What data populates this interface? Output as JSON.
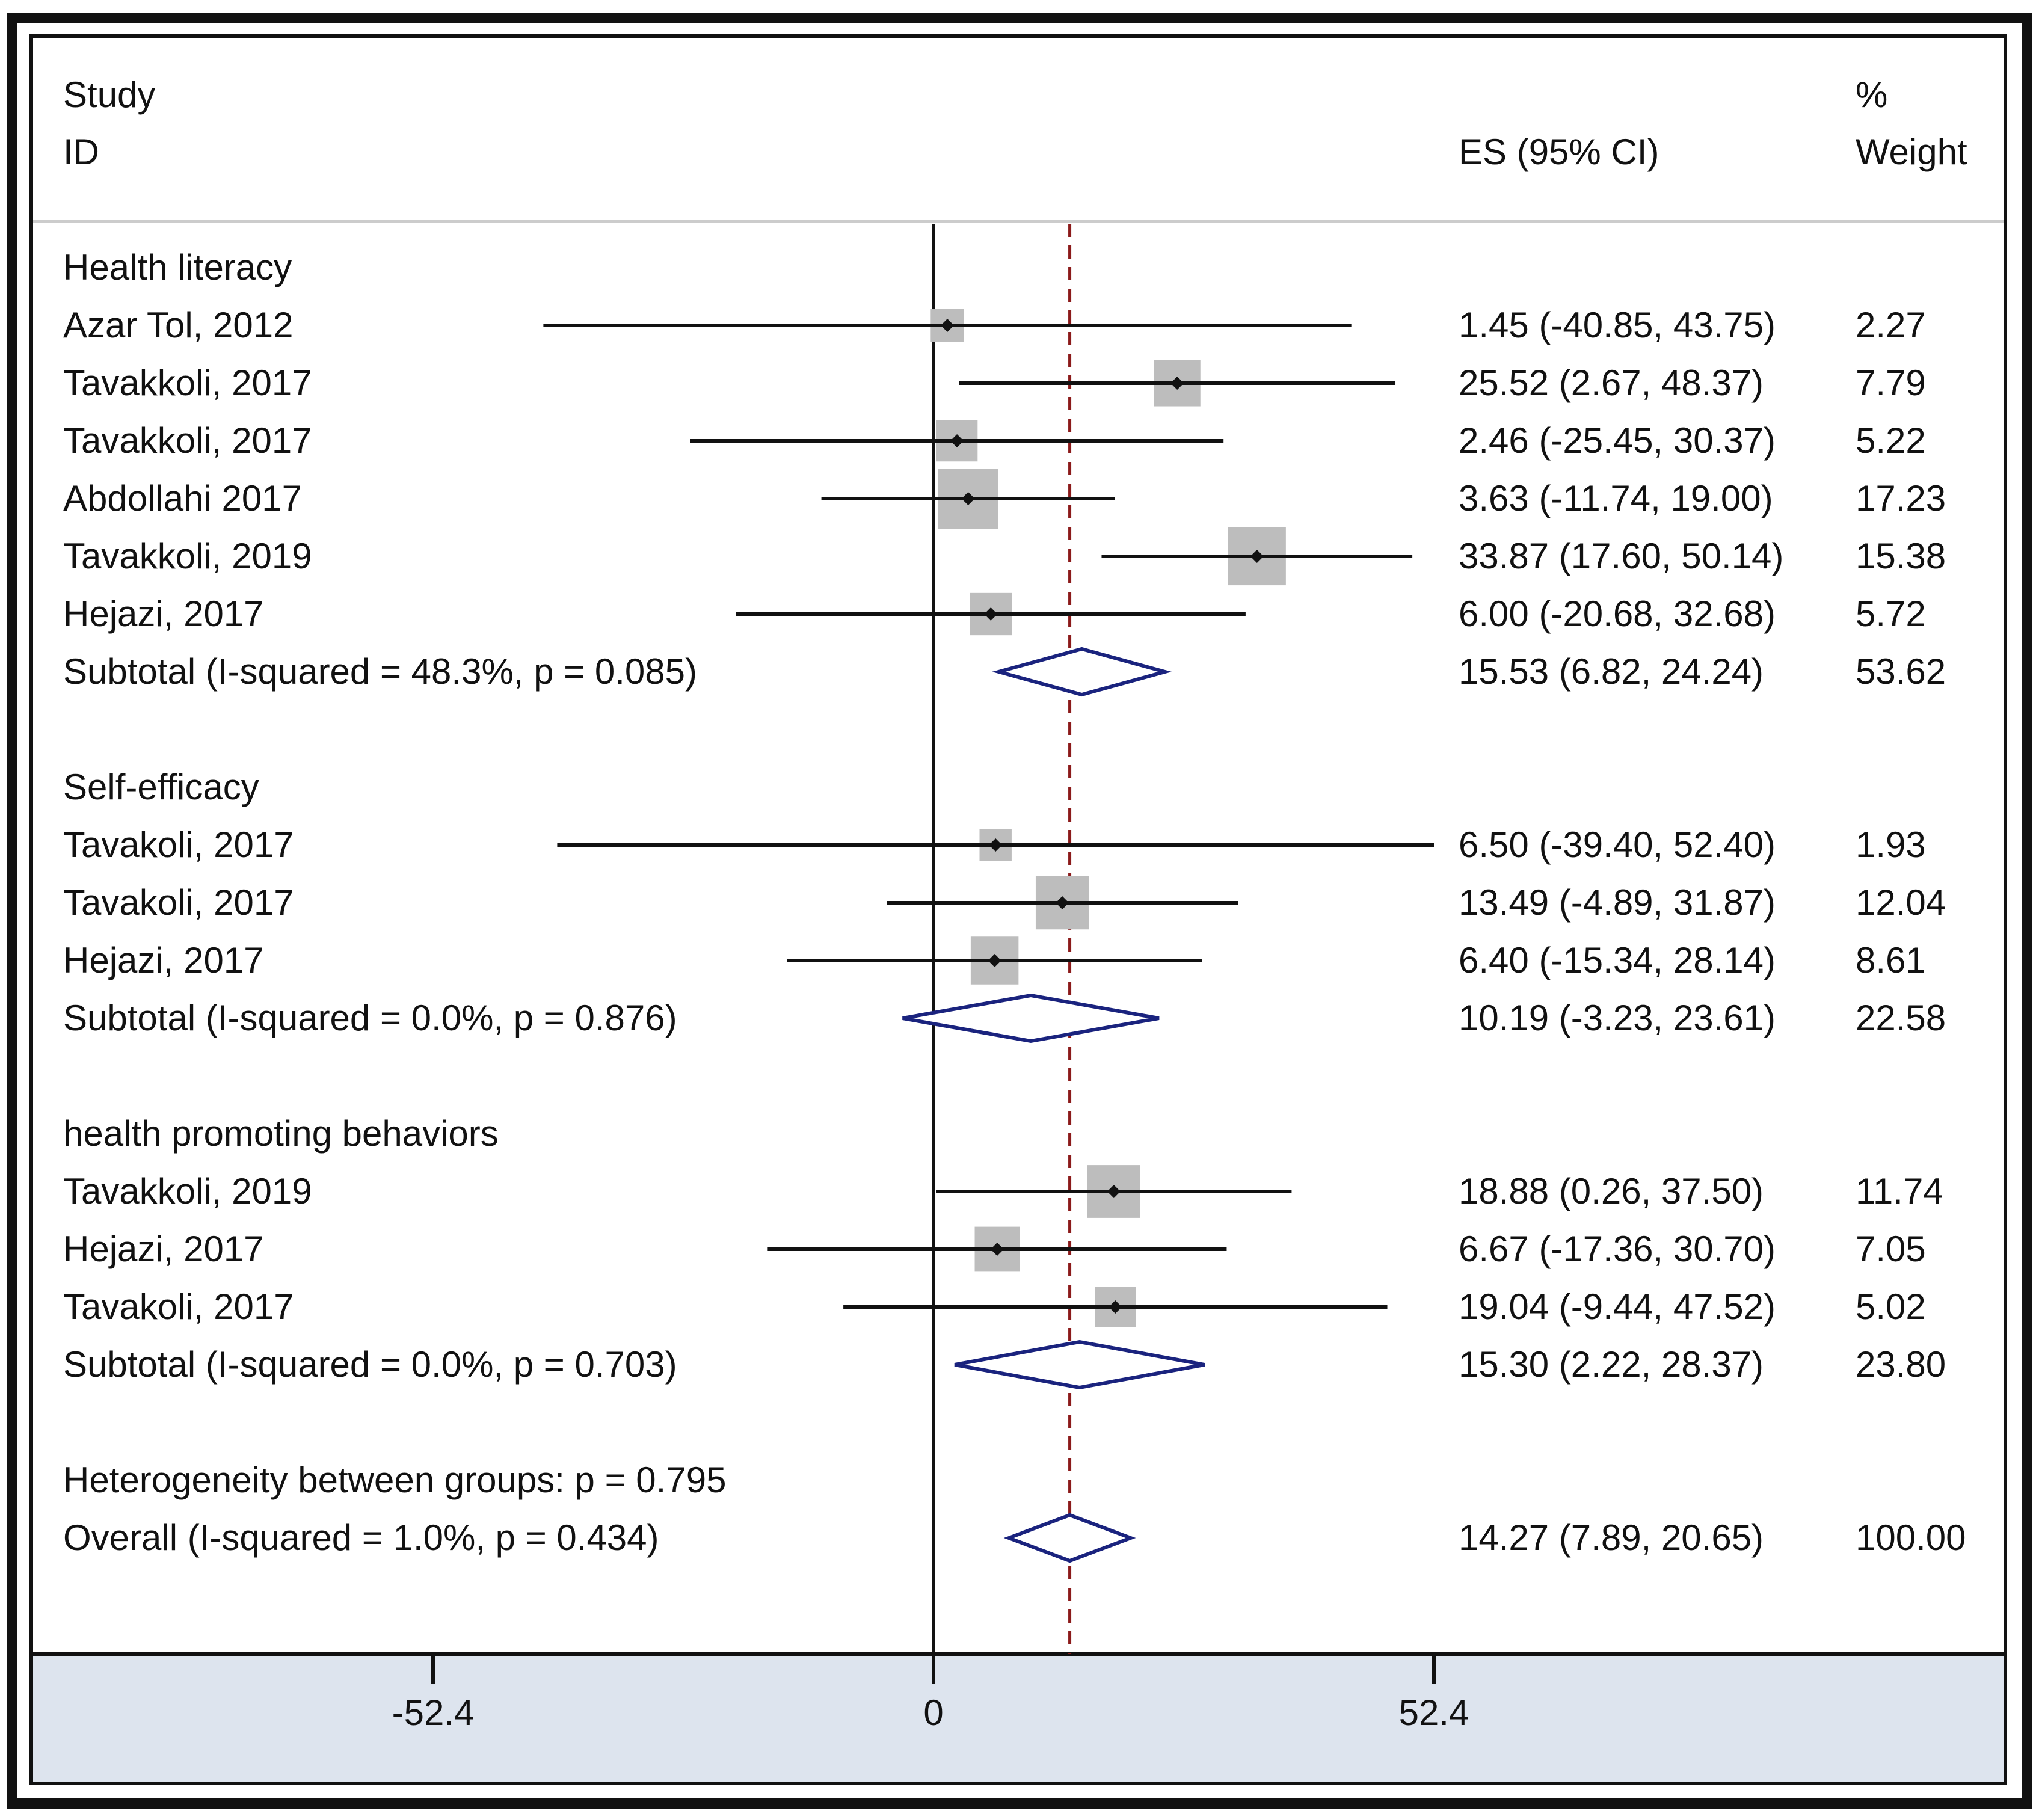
{
  "chart_data": {
    "type": "forest",
    "header": {
      "study_line1": "Study",
      "study_line2": "ID",
      "es_label": "ES (95% CI)",
      "weight_line1": "%",
      "weight_line2": "Weight"
    },
    "xlim": [
      -52.4,
      52.4
    ],
    "ticks": [
      {
        "value": -52.4,
        "label": "-52.4"
      },
      {
        "value": 0,
        "label": "0"
      },
      {
        "value": 52.4,
        "label": "52.4"
      }
    ],
    "overall_line": 14.27,
    "rows": [
      {
        "kind": "group",
        "label": "Health literacy"
      },
      {
        "kind": "study",
        "label": "Azar Tol, 2012",
        "es": 1.45,
        "lo": -40.85,
        "hi": 43.75,
        "es_text": "1.45 (-40.85, 43.75)",
        "weight": 2.27,
        "weight_text": "2.27"
      },
      {
        "kind": "study",
        "label": "Tavakkoli, 2017",
        "es": 25.52,
        "lo": 2.67,
        "hi": 48.37,
        "es_text": "25.52 (2.67, 48.37)",
        "weight": 7.79,
        "weight_text": "7.79"
      },
      {
        "kind": "study",
        "label": "Tavakkoli, 2017",
        "es": 2.46,
        "lo": -25.45,
        "hi": 30.37,
        "es_text": "2.46 (-25.45, 30.37)",
        "weight": 5.22,
        "weight_text": "5.22"
      },
      {
        "kind": "study",
        "label": "Abdollahi 2017",
        "es": 3.63,
        "lo": -11.74,
        "hi": 19.0,
        "es_text": "3.63 (-11.74, 19.00)",
        "weight": 17.23,
        "weight_text": "17.23"
      },
      {
        "kind": "study",
        "label": "Tavakkoli, 2019",
        "es": 33.87,
        "lo": 17.6,
        "hi": 50.14,
        "es_text": "33.87 (17.60, 50.14)",
        "weight": 15.38,
        "weight_text": "15.38"
      },
      {
        "kind": "study",
        "label": "Hejazi, 2017",
        "es": 6.0,
        "lo": -20.68,
        "hi": 32.68,
        "es_text": "6.00 (-20.68, 32.68)",
        "weight": 5.72,
        "weight_text": "5.72"
      },
      {
        "kind": "subtotal",
        "label": "Subtotal  (I-squared = 48.3%, p = 0.085)",
        "es": 15.53,
        "lo": 6.82,
        "hi": 24.24,
        "es_text": "15.53 (6.82, 24.24)",
        "weight": 53.62,
        "weight_text": "53.62"
      },
      {
        "kind": "blank"
      },
      {
        "kind": "group",
        "label": "Self-efficacy"
      },
      {
        "kind": "study",
        "label": "Tavakoli, 2017",
        "es": 6.5,
        "lo": -39.4,
        "hi": 52.4,
        "es_text": "6.50 (-39.40, 52.40)",
        "weight": 1.93,
        "weight_text": "1.93"
      },
      {
        "kind": "study",
        "label": "Tavakoli, 2017",
        "es": 13.49,
        "lo": -4.89,
        "hi": 31.87,
        "es_text": "13.49 (-4.89, 31.87)",
        "weight": 12.04,
        "weight_text": "12.04"
      },
      {
        "kind": "study",
        "label": "Hejazi, 2017",
        "es": 6.4,
        "lo": -15.34,
        "hi": 28.14,
        "es_text": "6.40 (-15.34, 28.14)",
        "weight": 8.61,
        "weight_text": "8.61"
      },
      {
        "kind": "subtotal",
        "label": "Subtotal  (I-squared = 0.0%, p = 0.876)",
        "es": 10.19,
        "lo": -3.23,
        "hi": 23.61,
        "es_text": "10.19 (-3.23, 23.61)",
        "weight": 22.58,
        "weight_text": "22.58"
      },
      {
        "kind": "blank"
      },
      {
        "kind": "group",
        "label": "health promoting behaviors"
      },
      {
        "kind": "study",
        "label": "Tavakkoli, 2019",
        "es": 18.88,
        "lo": 0.26,
        "hi": 37.5,
        "es_text": "18.88 (0.26, 37.50)",
        "weight": 11.74,
        "weight_text": "11.74"
      },
      {
        "kind": "study",
        "label": "Hejazi, 2017",
        "es": 6.67,
        "lo": -17.36,
        "hi": 30.7,
        "es_text": "6.67 (-17.36, 30.70)",
        "weight": 7.05,
        "weight_text": "7.05"
      },
      {
        "kind": "study",
        "label": "Tavakoli, 2017",
        "es": 19.04,
        "lo": -9.44,
        "hi": 47.52,
        "es_text": "19.04 (-9.44, 47.52)",
        "weight": 5.02,
        "weight_text": "5.02"
      },
      {
        "kind": "subtotal",
        "label": "Subtotal  (I-squared = 0.0%, p = 0.703)",
        "es": 15.3,
        "lo": 2.22,
        "hi": 28.37,
        "es_text": "15.30 (2.22, 28.37)",
        "weight": 23.8,
        "weight_text": "23.80"
      },
      {
        "kind": "blank"
      },
      {
        "kind": "group",
        "label": "Heterogeneity between groups: p = 0.795"
      },
      {
        "kind": "overall",
        "label": "Overall  (I-squared = 1.0%, p = 0.434)",
        "es": 14.27,
        "lo": 7.89,
        "hi": 20.65,
        "es_text": "14.27 (7.89, 20.65)",
        "weight": 100.0,
        "weight_text": "100.00"
      }
    ]
  },
  "colors": {
    "frame": "#111111",
    "axis_band": "#dde4ee",
    "weight_box": "#bdbdbd",
    "diamond": "#1a237e",
    "ref_line": "#8b1a1a",
    "text": "#111111"
  }
}
